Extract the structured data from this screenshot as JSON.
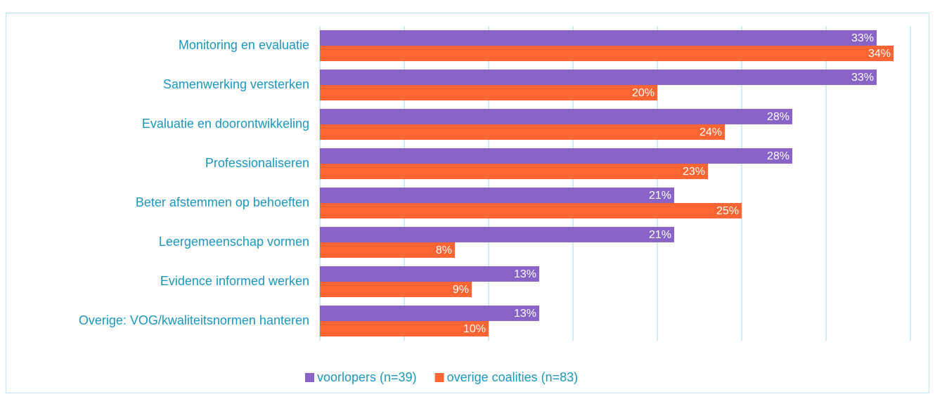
{
  "chart_data": {
    "type": "hbar",
    "categories": [
      "Monitoring en evaluatie",
      "Samenwerking versterken",
      "Evaluatie en doorontwikkeling",
      "Professionaliseren",
      "Beter afstemmen op behoeften",
      "Leergemeenschap vormen",
      "Evidence informed werken",
      "Overige: VOG/kwaliteitsnormen hanteren"
    ],
    "series": [
      {
        "name": "voorlopers (n=39)",
        "color": "#8a63c6",
        "values": [
          33,
          33,
          28,
          28,
          21,
          21,
          13,
          13
        ],
        "value_labels": [
          "33%",
          "33%",
          "28%",
          "28%",
          "21%",
          "21%",
          "13%",
          "13%"
        ]
      },
      {
        "name": "overige coalities (n=83)",
        "color": "#ff6633",
        "values": [
          34,
          20,
          24,
          23,
          25,
          8,
          9,
          10
        ],
        "value_labels": [
          "34%",
          "20%",
          "24%",
          "23%",
          "25%",
          "8%",
          "9%",
          "10%"
        ]
      }
    ],
    "xlim": [
      0,
      35
    ],
    "xticks": [
      0,
      5,
      10,
      15,
      20,
      25,
      30,
      35
    ],
    "grid": true,
    "legend": "bottom"
  }
}
